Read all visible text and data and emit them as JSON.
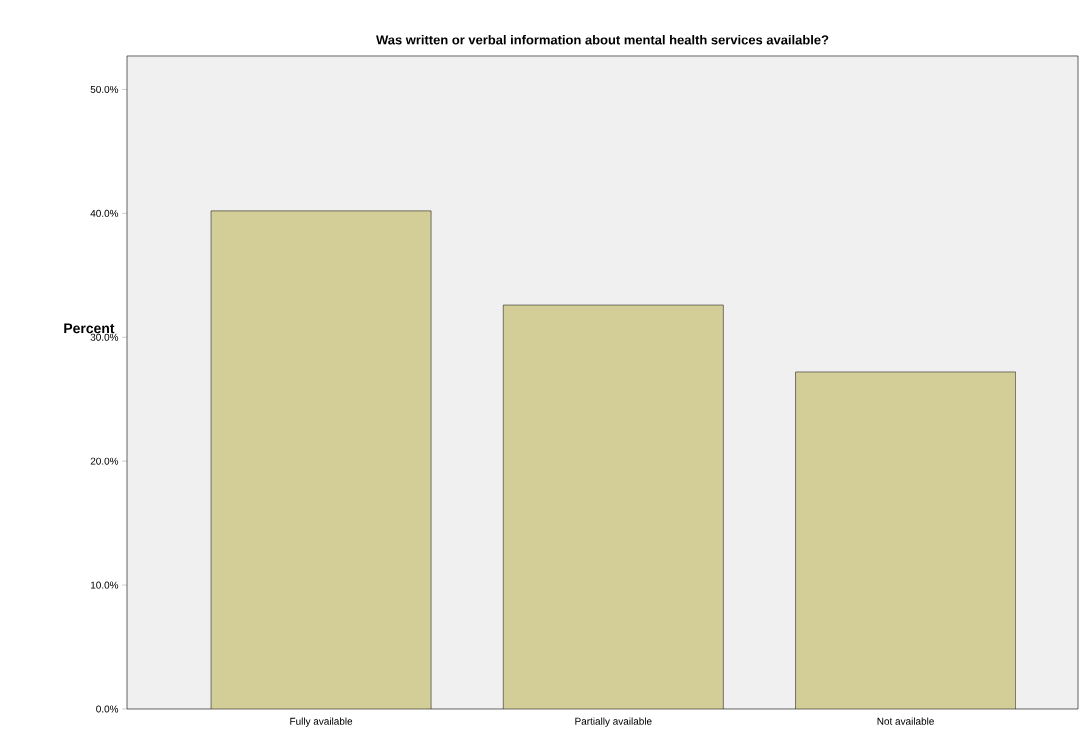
{
  "chart_data": {
    "type": "bar",
    "title": "Was written or verbal information about mental health services available?",
    "ylabel": "Percent",
    "categories": [
      "Fully available",
      "Partially available",
      "Not available"
    ],
    "values": [
      40.2,
      32.6,
      27.2
    ],
    "color": "#d3ce98",
    "ylim": [
      0,
      52.7
    ],
    "yticks": [
      {
        "value": 0,
        "label": "0.0%"
      },
      {
        "value": 10,
        "label": "10.0%"
      },
      {
        "value": 20,
        "label": "20.0%"
      },
      {
        "value": 30,
        "label": "30.0%"
      },
      {
        "value": 40,
        "label": "40.0%"
      },
      {
        "value": 50,
        "label": "50.0%"
      }
    ],
    "grid": false
  }
}
